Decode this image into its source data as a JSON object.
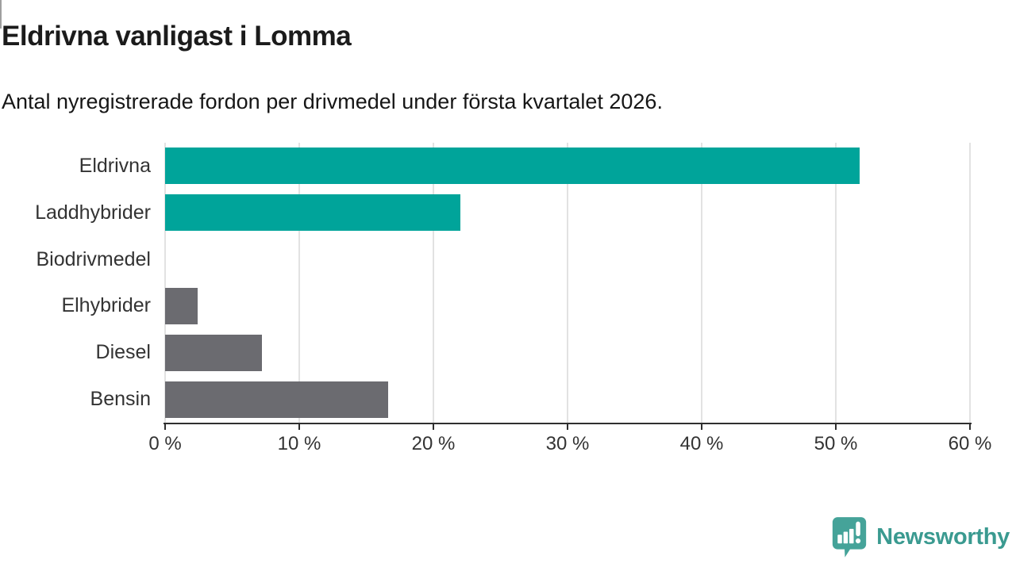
{
  "header": {
    "title": "Eldrivna vanligast i Lomma",
    "subtitle": "Antal nyregistrerade fordon per drivmedel under första kvartalet 2026."
  },
  "chart_data": {
    "type": "bar",
    "orientation": "horizontal",
    "title": "Eldrivna vanligast i Lomma",
    "subtitle": "Antal nyregistrerade fordon per drivmedel under första kvartalet 2026.",
    "categories": [
      "Eldrivna",
      "Laddhybrider",
      "Biodrivmedel",
      "Elhybrider",
      "Diesel",
      "Bensin"
    ],
    "values": [
      51.8,
      22.0,
      0,
      2.4,
      7.2,
      16.6
    ],
    "unit": "%",
    "xlabel": "",
    "ylabel": "",
    "xlim": [
      0,
      60
    ],
    "x_ticks": [
      0,
      10,
      20,
      30,
      40,
      50,
      60
    ],
    "x_tick_labels": [
      "0 %",
      "10 %",
      "20 %",
      "30 %",
      "40 %",
      "50 %",
      "60 %"
    ],
    "bar_colors": [
      "#00a49a",
      "#00a49a",
      "#6b6b70",
      "#6b6b70",
      "#6b6b70",
      "#6b6b70"
    ],
    "grid": true,
    "legend": "none"
  },
  "colors": {
    "accent_teal": "#00a49a",
    "bar_gray": "#6b6b70",
    "gridline": "#e2e2e2",
    "axis": "#2f2f2f",
    "logo_icon_teal": "#45a399",
    "logo_text_teal": "#3a9a90"
  },
  "footer": {
    "brand": "Newsworthy",
    "logo_icon": "newsworthy-speech-bubble-bar-chart-icon"
  }
}
